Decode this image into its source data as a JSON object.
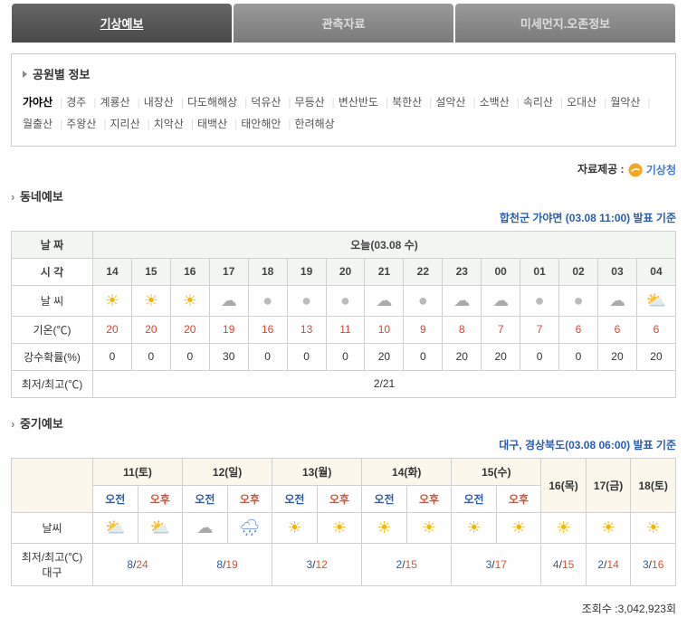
{
  "tabs": [
    {
      "label": "기상예보",
      "active": true
    },
    {
      "label": "관측자료",
      "active": false
    },
    {
      "label": "미세먼지.오존정보",
      "active": false
    }
  ],
  "park_box": {
    "title": "공원별 정보",
    "parks": [
      "가야산",
      "경주",
      "계룡산",
      "내장산",
      "다도해해상",
      "덕유산",
      "무등산",
      "변산반도",
      "북한산",
      "설악산",
      "소백산",
      "속리산",
      "오대산",
      "월악산",
      "월출산",
      "주왕산",
      "지리산",
      "치악산",
      "태백산",
      "태안해안",
      "한려해상"
    ],
    "active_index": 0
  },
  "provider": {
    "label": "자료제공 :",
    "name": "기상청"
  },
  "hourly": {
    "section": "동네예보",
    "announce": "합천군 가야면 (03.08 11:00) 발표 기준",
    "headers": {
      "date": "날 짜",
      "time": "시 각",
      "weather": "날 씨",
      "temp": "기온(℃)",
      "precip": "강수확률(%)",
      "minmax": "최저/최고(℃)"
    },
    "date_label": "오늘(03.08 수)",
    "hours": [
      "14",
      "15",
      "16",
      "17",
      "18",
      "19",
      "20",
      "21",
      "22",
      "23",
      "00",
      "01",
      "02",
      "03",
      "04"
    ],
    "icons": [
      "sun",
      "sun",
      "sun",
      "cloud",
      "moon",
      "moon",
      "moon",
      "pcloud-n",
      "moon",
      "pcloud-n",
      "pcloud-n",
      "moon",
      "moon",
      "pcloud-n",
      "pcloud"
    ],
    "temps": [
      20,
      20,
      20,
      19,
      16,
      13,
      11,
      10,
      9,
      8,
      7,
      7,
      6,
      6,
      6
    ],
    "precip": [
      0,
      0,
      0,
      30,
      0,
      0,
      0,
      20,
      0,
      20,
      20,
      0,
      0,
      20,
      20
    ],
    "minmax": "2/21"
  },
  "extended": {
    "section": "중기예보",
    "announce": "대구, 경상북도(03.08 06:00) 발표 기준",
    "headers": {
      "weather": "날씨",
      "minmax": "최저/최고(℃)\n대구",
      "am": "오전",
      "pm": "오후"
    },
    "days": [
      {
        "label": "11(토)",
        "split": true,
        "am_icon": "pcloud",
        "pm_icon": "pcloud",
        "lo": 8,
        "hi": 24
      },
      {
        "label": "12(일)",
        "split": true,
        "am_icon": "cloud",
        "pm_icon": "rain",
        "lo": 8,
        "hi": 19
      },
      {
        "label": "13(월)",
        "split": true,
        "am_icon": "sun",
        "pm_icon": "sun",
        "lo": 3,
        "hi": 12
      },
      {
        "label": "14(화)",
        "split": true,
        "am_icon": "sun",
        "pm_icon": "sun",
        "lo": 2,
        "hi": 15
      },
      {
        "label": "15(수)",
        "split": true,
        "am_icon": "sun",
        "pm_icon": "sun",
        "lo": 3,
        "hi": 17
      },
      {
        "label": "16(목)",
        "split": false,
        "icon": "sun",
        "lo": 4,
        "hi": 15
      },
      {
        "label": "17(금)",
        "split": false,
        "icon": "sun",
        "lo": 2,
        "hi": 14
      },
      {
        "label": "18(토)",
        "split": false,
        "icon": "sun",
        "lo": 3,
        "hi": 16
      }
    ]
  },
  "views": {
    "label": "조회수 :",
    "value": "3,042,923회"
  }
}
